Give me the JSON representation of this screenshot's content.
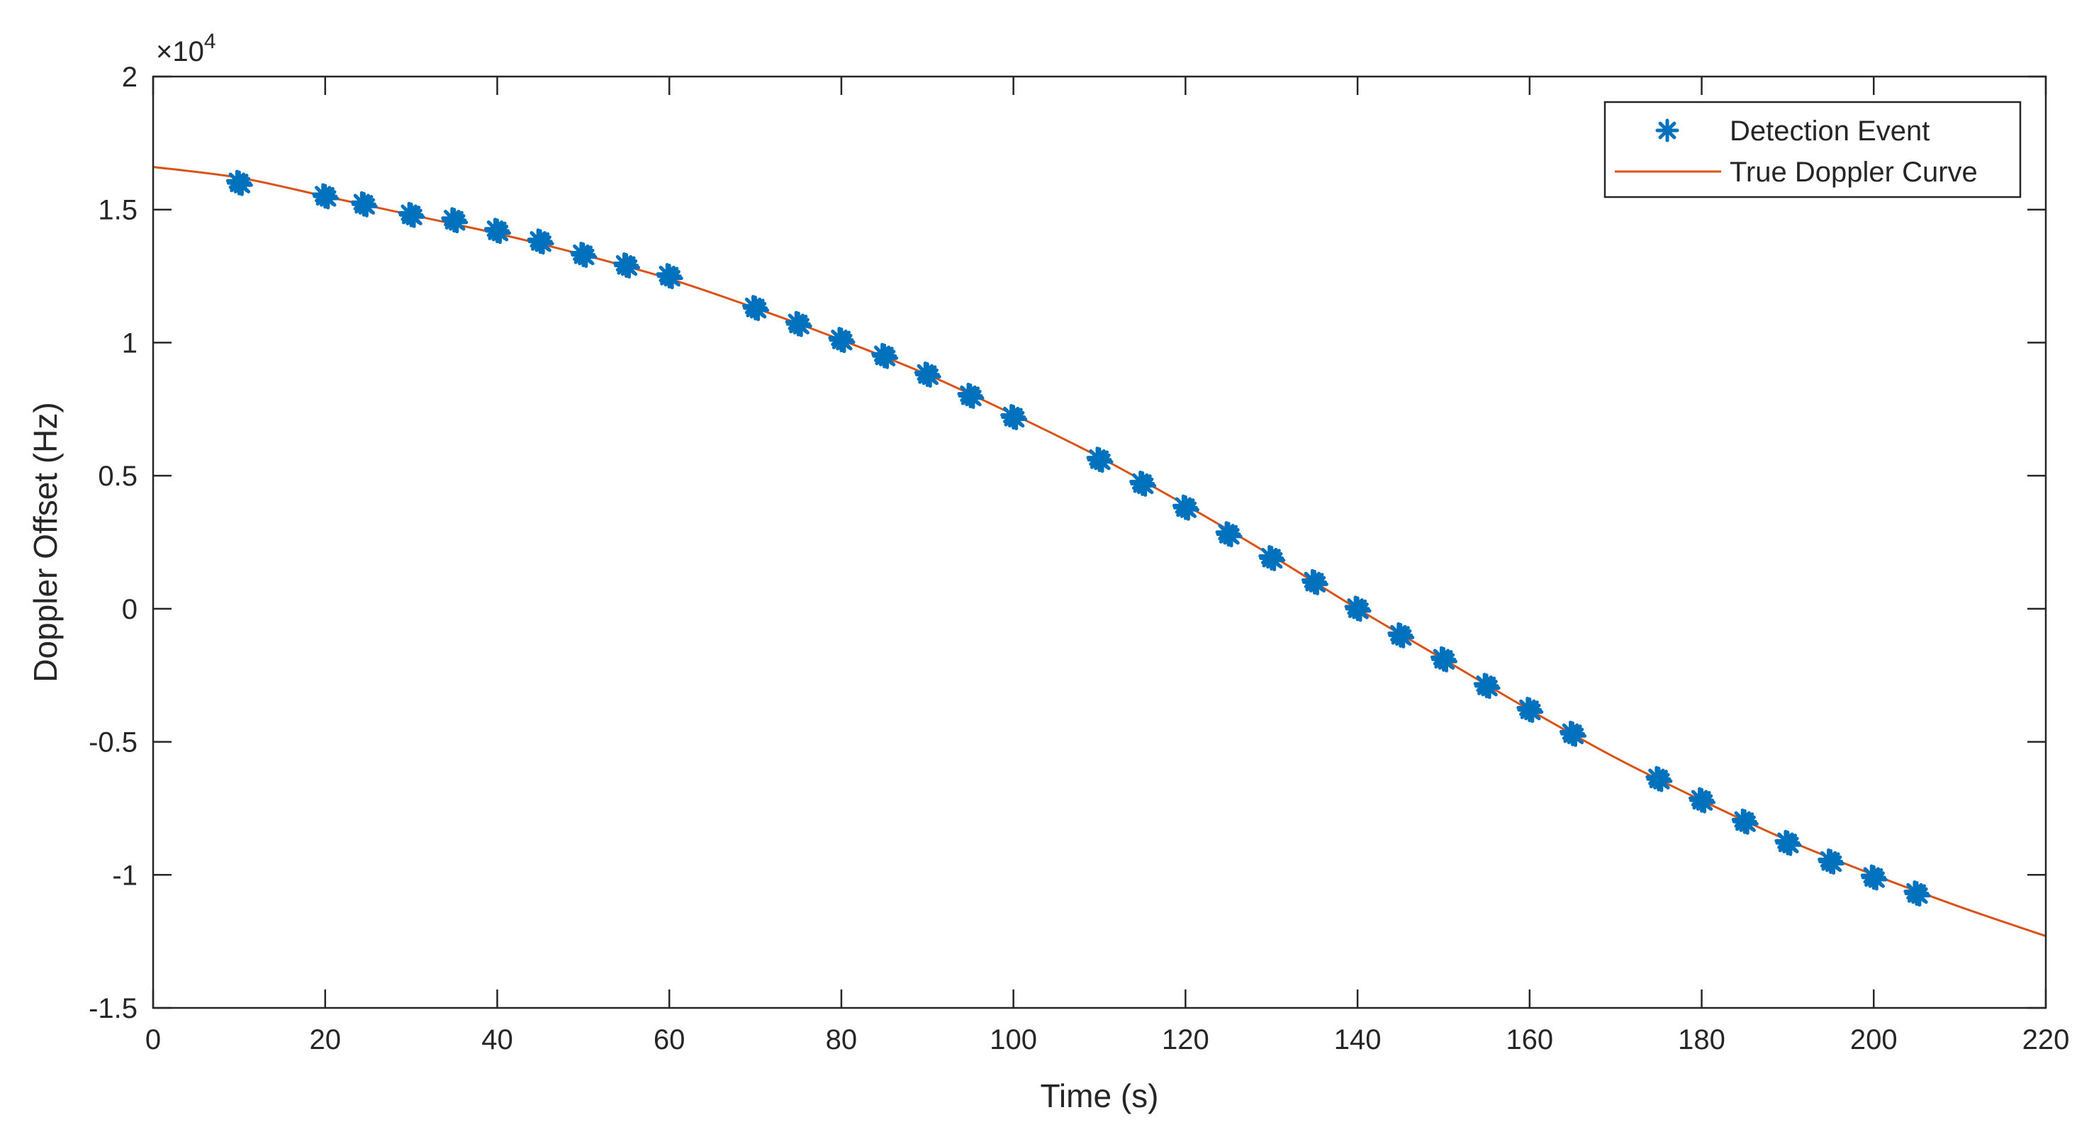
{
  "chart_data": {
    "type": "scatter",
    "title": "",
    "xlabel": "Time (s)",
    "ylabel": "Doppler Offset (Hz)",
    "exponent_label": {
      "prefix": "×10",
      "power": "4"
    },
    "xlim": [
      0,
      220
    ],
    "ylim": [
      -15000,
      20000
    ],
    "xticks": [
      0,
      20,
      40,
      60,
      80,
      100,
      120,
      140,
      160,
      180,
      200,
      220
    ],
    "xtick_labels": [
      "0",
      "20",
      "40",
      "60",
      "80",
      "100",
      "120",
      "140",
      "160",
      "180",
      "200",
      "220"
    ],
    "yticks": [
      -15000,
      -10000,
      -5000,
      0,
      5000,
      10000,
      15000,
      20000
    ],
    "ytick_labels": [
      "-1.5",
      "-1",
      "-0.5",
      "0",
      "0.5",
      "1",
      "1.5",
      "2"
    ],
    "grid": false,
    "legend_position": "top-right",
    "series": [
      {
        "name": "Detection Event",
        "kind": "scatter",
        "marker": "asterisk",
        "color": "#0072BD",
        "x": [
          10,
          20,
          24.5,
          30,
          35,
          40,
          45,
          50,
          55,
          60,
          70,
          75,
          80,
          85,
          90,
          95,
          100,
          110,
          115,
          120,
          125,
          130,
          135,
          140,
          145,
          150,
          155,
          160,
          165,
          175,
          180,
          185,
          190,
          195,
          200,
          205
        ],
        "y": [
          16000,
          15500,
          15200,
          14800,
          14600,
          14200,
          13800,
          13300,
          12900,
          12500,
          11300,
          10700,
          10100,
          9500,
          8800,
          8000,
          7200,
          5600,
          4700,
          3800,
          2800,
          1900,
          1000,
          0,
          -1000,
          -1900,
          -2900,
          -3800,
          -4700,
          -6400,
          -7200,
          -8000,
          -8800,
          -9500,
          -10100,
          -10700
        ]
      },
      {
        "name": "True Doppler Curve",
        "kind": "line",
        "color": "#D95319",
        "x": [
          0,
          10,
          20,
          30,
          40,
          50,
          60,
          70,
          80,
          90,
          100,
          110,
          120,
          130,
          140,
          150,
          160,
          170,
          180,
          190,
          200,
          210,
          220
        ],
        "y": [
          16600,
          16200,
          15500,
          14800,
          14100,
          13300,
          12400,
          11300,
          10100,
          8800,
          7300,
          5700,
          3900,
          2000,
          0,
          -1900,
          -3800,
          -5600,
          -7200,
          -8700,
          -10000,
          -11200,
          -12300
        ]
      }
    ]
  }
}
